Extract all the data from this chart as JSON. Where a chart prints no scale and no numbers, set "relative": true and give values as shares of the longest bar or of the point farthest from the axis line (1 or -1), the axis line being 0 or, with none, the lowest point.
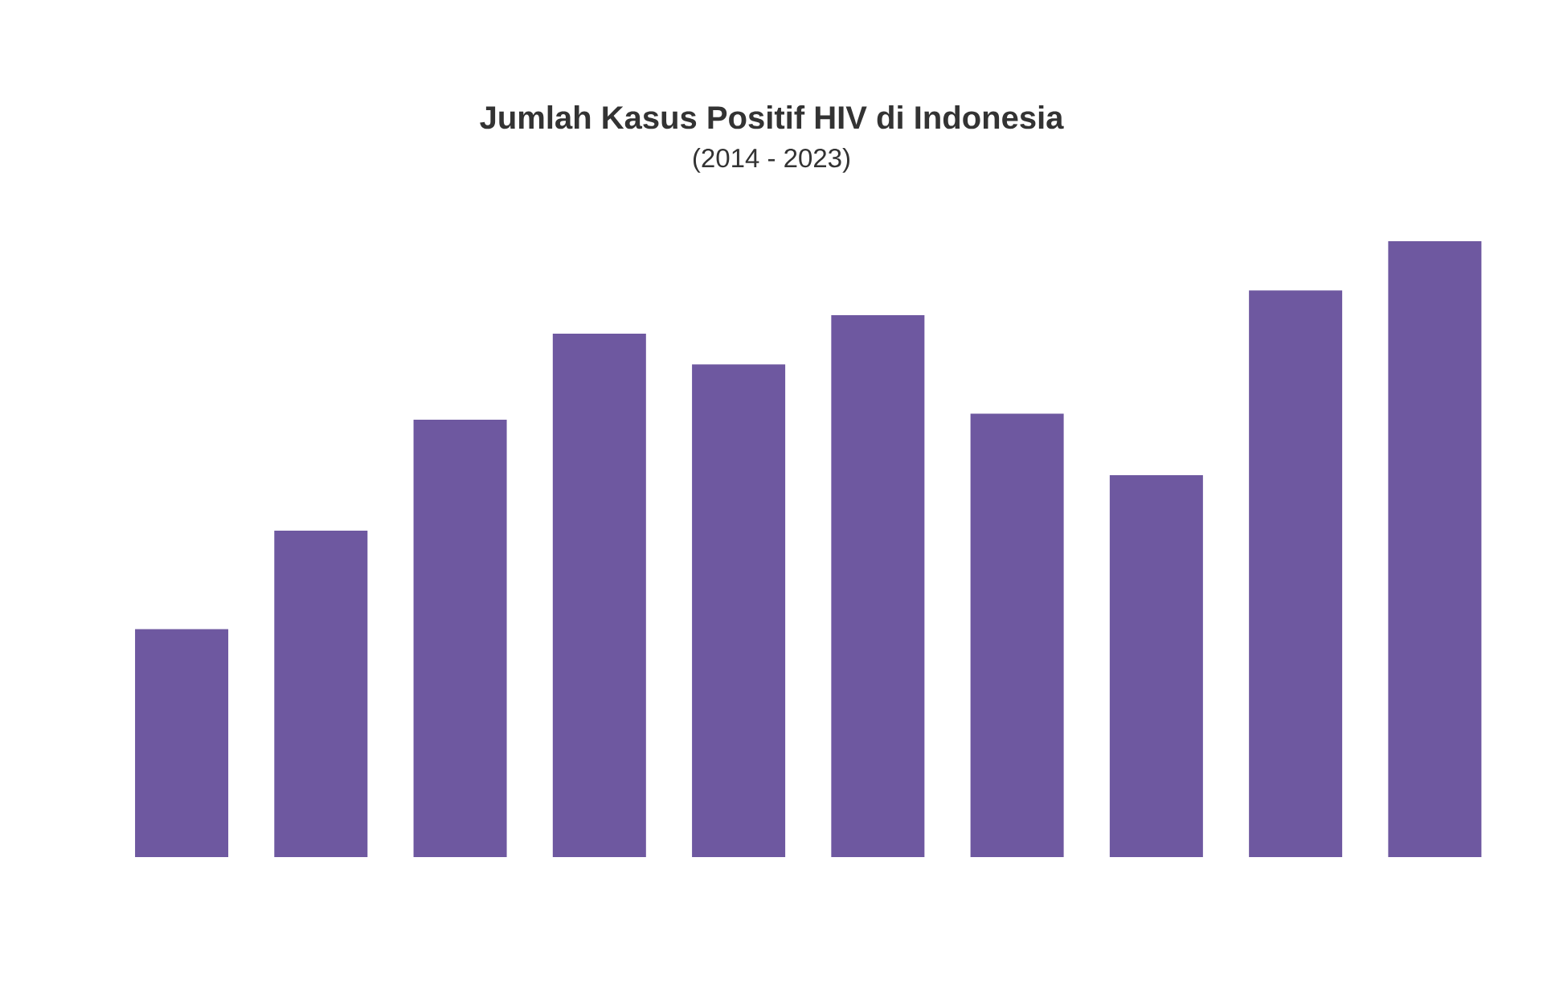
{
  "chart_data": {
    "type": "bar",
    "title": "Jumlah Kasus Positif HIV di Indonesia",
    "subtitle": "(2014 - 2023)",
    "categories": [
      null,
      null,
      null,
      null,
      null,
      null,
      null,
      null,
      null,
      null
    ],
    "values": [
      0.37,
      0.53,
      0.71,
      0.85,
      0.8,
      0.88,
      0.72,
      0.62,
      0.92,
      1
    ],
    "color": "#6e58a0",
    "relative": true
  }
}
